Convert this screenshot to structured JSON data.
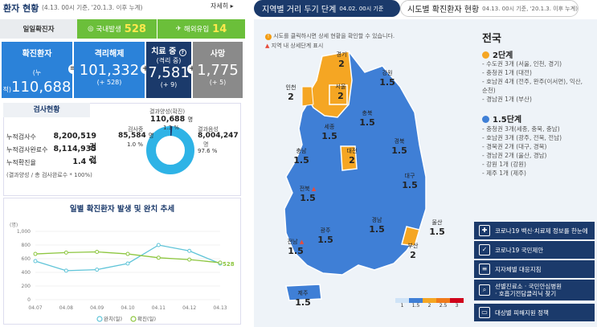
{
  "header": {
    "title": "환자 현황",
    "sub": "(4.13. 00시 기준, '20.1.3. 이후 누계)",
    "more": "자세히 ▸"
  },
  "tabs": {
    "daily": "일일확진자",
    "domestic_label": "국내발생",
    "domestic_val": "528",
    "overseas_label": "해외유입",
    "overseas_val": "14"
  },
  "stats": [
    {
      "label": "확진환자",
      "value": "110,688",
      "prefix": "(누적)",
      "sub": "전일대비 (+ 542)",
      "color": "#2b82d9"
    },
    {
      "label": "격리해제",
      "value": "101,332",
      "prefix": "",
      "sub": "(+ 528)",
      "color": "#2b82d9"
    },
    {
      "label": "치료 중",
      "label2": "(격리 중)",
      "value": "7,581",
      "prefix": "",
      "sub": "(+ 9)",
      "color": "#1b3a6b"
    },
    {
      "label": "사망",
      "value": "1,775",
      "prefix": "",
      "sub": "(+ 5)",
      "color": "#8a8a8a"
    }
  ],
  "tests": {
    "title": "검사현황",
    "rows": [
      {
        "label": "누적검사수",
        "value": "8,200,519 건"
      },
      {
        "label": "누적검사완료수",
        "value": "8,114,935 건"
      },
      {
        "label": "누적확진율",
        "value": "1.4 %"
      }
    ],
    "note": "(결과양성 / 총 검사완료수 * 100%)",
    "donut": {
      "pos_label": "결과양성(확진)",
      "pos_val": "110,688",
      "pos_unit": "명",
      "pos_pct": "1.3 %",
      "ing_label": "검사중",
      "ing_val": "85,584",
      "ing_unit": "명",
      "ing_pct": "1.0 %",
      "neg_label": "결과음성",
      "neg_val": "8,004,247",
      "neg_unit": "명",
      "neg_pct": "97.6 %"
    }
  },
  "chart_title": "일별 확진환자 발생 및 완치 추세",
  "chart_data": {
    "type": "line",
    "x": [
      "04.07",
      "04.08",
      "04.09",
      "04.10",
      "04.11",
      "04.12",
      "04.13"
    ],
    "ylabel": "(명)",
    "ylim": [
      0,
      1000
    ],
    "yticks": [
      "1,000",
      "800",
      "600",
      "400",
      "200",
      "0"
    ],
    "series": [
      {
        "name": "완치(일)",
        "color": "#5fc4d8",
        "values": [
          565,
          425,
          440,
          530,
          800,
          715,
          528
        ]
      },
      {
        "name": "확진(일)",
        "color": "#8dc63f",
        "values": [
          670,
          690,
          700,
          670,
          614,
          587,
          542
        ]
      }
    ],
    "end_label": "528"
  },
  "right": {
    "tab1": "지역별 거리 두기 단계",
    "tab1_sub": "04.02. 00시 기준",
    "tab2": "시도별 확진환자 현황",
    "tab2_sub": "04.13. 00시 기준, '20.1.3. 이후 누계)",
    "note1": "시도를 클릭하시면 상세 현황을 확인할 수 있습니다.",
    "note2": "지역 내 상세단계 표시",
    "regions": [
      {
        "name": "경기",
        "level": "2"
      },
      {
        "name": "강원",
        "level": "1.5"
      },
      {
        "name": "인천",
        "level": "2"
      },
      {
        "name": "서울",
        "level": "2"
      },
      {
        "name": "충북",
        "level": "1.5"
      },
      {
        "name": "세종",
        "level": "1.5"
      },
      {
        "name": "충남",
        "level": "1.5"
      },
      {
        "name": "대전",
        "level": "2"
      },
      {
        "name": "경북",
        "level": "1.5"
      },
      {
        "name": "전북",
        "level": "1.5"
      },
      {
        "name": "대구",
        "level": "1.5"
      },
      {
        "name": "광주",
        "level": "1.5"
      },
      {
        "name": "경남",
        "level": "1.5"
      },
      {
        "name": "울산",
        "level": "1.5"
      },
      {
        "name": "부산",
        "level": "2"
      },
      {
        "name": "전남",
        "level": "1.5"
      },
      {
        "name": "제주",
        "level": "1.5"
      }
    ],
    "legend": [
      "1",
      "1.5",
      "2",
      "2.5",
      "3"
    ],
    "side_title": "전국",
    "lvl2": "2단계",
    "lvl2_items": [
      "- 수도권 3개 (서울, 인천, 경기)",
      "- 충청권 1개 (대전)",
      "- 호남권 4개 (전주, 완주(이서면), 익산,",
      "  순천)",
      "- 경남권 1개 (부산)"
    ],
    "lvl15": "1.5단계",
    "lvl15_items": [
      "- 충청권 3개(세종, 충북, 충남)",
      "- 호남권 3개 (광주, 전북, 전남)",
      "- 경북권 2개 (대구, 경북)",
      "- 경남권 2개 (울산, 경남)",
      "- 강원 1개 (강원)",
      "- 제주 1개 (제주)"
    ],
    "buttons": [
      "코로나19 백신·치료제 정보를 한눈에",
      "코로나19 국민제안",
      "지자체별 대응지침",
      "선별진료소 · 국민안심병원\n· 호흡기전담클리닉 찾기",
      "대상별 피해지원 정책"
    ]
  }
}
